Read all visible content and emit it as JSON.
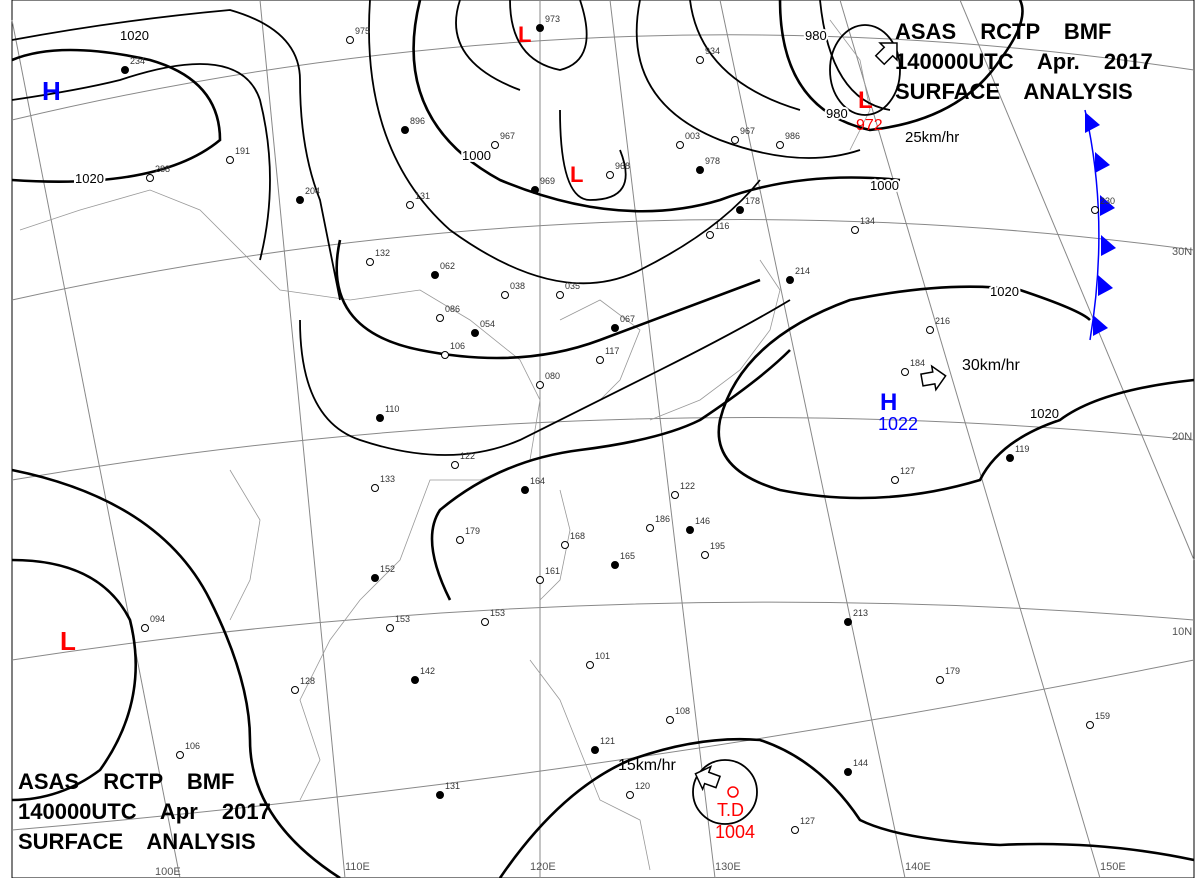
{
  "header_top": {
    "line1": "ASAS      RCTP      BMF",
    "line2": "140000UTC     Apr.     2017",
    "line3": "SURFACE  ANALYSIS"
  },
  "header_bottom": {
    "line1": "ASAS    RCTP    BMF",
    "line2": "140000UTC    Apr    2017",
    "line3": "SURFACE  ANALYSIS"
  },
  "colors": {
    "low": "#ff0000",
    "high": "#0000ff",
    "front": "#0000ff",
    "isobar": "#000000"
  },
  "lon_labels": [
    "100E",
    "110E",
    "120E",
    "130E",
    "140E",
    "150E"
  ],
  "lat_labels": [
    "30N",
    "20N",
    "10N"
  ],
  "isobar_labels": [
    "1020",
    "1020",
    "1000",
    "1000",
    "980",
    "980",
    "1020",
    "1020"
  ],
  "pressure_centers": [
    {
      "type": "H",
      "color": "#0000ff"
    },
    {
      "type": "L",
      "color": "#ff0000"
    },
    {
      "type": "L",
      "color": "#ff0000"
    },
    {
      "type": "L",
      "color": "#ff0000",
      "value": "972"
    },
    {
      "type": "H",
      "color": "#0000ff",
      "value": "1022"
    },
    {
      "type": "L",
      "color": "#ff0000"
    },
    {
      "type": "T.D",
      "color": "#ff0000",
      "value": "1004"
    }
  ],
  "motion": [
    {
      "label": "30km/hr"
    },
    {
      "label": "15km/hr"
    },
    {
      "label": "25km/hr"
    }
  ],
  "front": {
    "type": "cold",
    "color": "#0000ff"
  },
  "stations": [
    "234",
    "288",
    "191",
    "204",
    "131",
    "132",
    "062",
    "086",
    "106",
    "054",
    "038",
    "035",
    "067",
    "117",
    "080",
    "110",
    "122",
    "133",
    "164",
    "179",
    "168",
    "165",
    "161",
    "153",
    "152",
    "153",
    "094",
    "142",
    "128",
    "106",
    "131",
    "120",
    "108",
    "121",
    "101",
    "122",
    "146",
    "195",
    "186",
    "213",
    "179",
    "159",
    "144",
    "127",
    "127",
    "119",
    "216",
    "184",
    "214",
    "230",
    "134",
    "178",
    "116",
    "003",
    "978",
    "967",
    "968",
    "969",
    "967",
    "975",
    "973",
    "986",
    "934",
    "896"
  ]
}
